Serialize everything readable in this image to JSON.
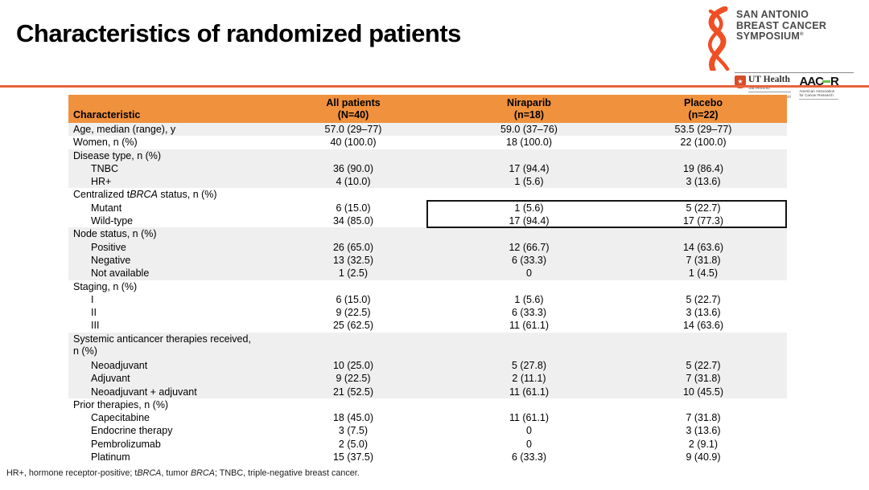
{
  "title": "Characteristics of randomized patients",
  "colors": {
    "header_bg": "#F0913D",
    "row_shade": "#EFEFEF",
    "rule_orange": "#E8643C",
    "ribbon_orange": "#F04E23",
    "aacr_green": "#6CBE4B",
    "ut_shield": "#D64C27"
  },
  "logo": {
    "line1": "SAN ANTONIO",
    "line2": "BREAST CANCER",
    "line3": "SYMPOSIUM",
    "registered": "®",
    "ut_health": {
      "name": "UT Health",
      "sub": "San Antonio",
      "center": "Mays Cancer Center",
      "star": "★"
    },
    "aacr": {
      "left": "AAC",
      "right": "R",
      "sub1": "American Association",
      "sub2": "for Cancer Research"
    }
  },
  "table": {
    "columns": [
      {
        "label": "Characteristic",
        "sub": ""
      },
      {
        "label": "All patients",
        "sub": "(N=40)"
      },
      {
        "label": "Niraparib",
        "sub": "(n=18)"
      },
      {
        "label": "Placebo",
        "sub": "(n=22)"
      }
    ],
    "rows": [
      {
        "label": "Age, median (range), y",
        "indent": false,
        "shade": true,
        "values": [
          "57.0 (29–77)",
          "59.0 (37–76)",
          "53.5 (29–77)"
        ]
      },
      {
        "label": "Women, n (%)",
        "indent": false,
        "shade": false,
        "values": [
          "40 (100.0)",
          "18 (100.0)",
          "22 (100.0)"
        ]
      },
      {
        "label": "Disease type, n (%)",
        "indent": false,
        "shade": true,
        "values": [
          "",
          "",
          ""
        ]
      },
      {
        "label": "TNBC",
        "indent": true,
        "shade": true,
        "values": [
          "36 (90.0)",
          "17 (94.4)",
          "19 (86.4)"
        ]
      },
      {
        "label": "HR+",
        "indent": true,
        "shade": true,
        "values": [
          "4 (10.0)",
          "1 (5.6)",
          "3 (13.6)"
        ]
      },
      {
        "label": "Centralized tBRCA status, n (%)",
        "indent": false,
        "shade": false,
        "values": [
          "",
          "",
          ""
        ]
      },
      {
        "label": "Mutant",
        "indent": true,
        "shade": false,
        "values": [
          "6 (15.0)",
          "1 (5.6)",
          "5 (22.7)"
        ],
        "highlight": true
      },
      {
        "label": "Wild-type",
        "indent": true,
        "shade": false,
        "values": [
          "34 (85.0)",
          "17 (94.4)",
          "17 (77.3)"
        ],
        "highlight": true
      },
      {
        "label": "Node status, n (%)",
        "indent": false,
        "shade": true,
        "values": [
          "",
          "",
          ""
        ]
      },
      {
        "label": "Positive",
        "indent": true,
        "shade": true,
        "values": [
          "26 (65.0)",
          "12 (66.7)",
          "14 (63.6)"
        ]
      },
      {
        "label": "Negative",
        "indent": true,
        "shade": true,
        "values": [
          "13 (32.5)",
          "6 (33.3)",
          "7 (31.8)"
        ]
      },
      {
        "label": "Not available",
        "indent": true,
        "shade": true,
        "values": [
          "1 (2.5)",
          "0",
          "1 (4.5)"
        ]
      },
      {
        "label": "Staging, n (%)",
        "indent": false,
        "shade": false,
        "values": [
          "",
          "",
          ""
        ]
      },
      {
        "label": "I",
        "indent": true,
        "shade": false,
        "values": [
          "6 (15.0)",
          "1 (5.6)",
          "5 (22.7)"
        ]
      },
      {
        "label": "II",
        "indent": true,
        "shade": false,
        "values": [
          "9 (22.5)",
          "6 (33.3)",
          "3 (13.6)"
        ]
      },
      {
        "label": "III",
        "indent": true,
        "shade": false,
        "values": [
          "25 (62.5)",
          "11 (61.1)",
          "14 (63.6)"
        ]
      },
      {
        "label": "Systemic anticancer therapies received,\nn (%)",
        "indent": false,
        "shade": true,
        "twoline": true,
        "values": [
          "",
          "",
          ""
        ]
      },
      {
        "label": "Neoadjuvant",
        "indent": true,
        "shade": true,
        "values": [
          "10 (25.0)",
          "5 (27.8)",
          "5 (22.7)"
        ]
      },
      {
        "label": "Adjuvant",
        "indent": true,
        "shade": true,
        "values": [
          "9 (22.5)",
          "2 (11.1)",
          "7 (31.8)"
        ]
      },
      {
        "label": "Neoadjuvant + adjuvant",
        "indent": true,
        "shade": true,
        "values": [
          "21 (52.5)",
          "11 (61.1)",
          "10 (45.5)"
        ]
      },
      {
        "label": "Prior therapies, n (%)",
        "indent": false,
        "shade": false,
        "values": [
          "",
          "",
          ""
        ]
      },
      {
        "label": "Capecitabine",
        "indent": true,
        "shade": false,
        "values": [
          "18 (45.0)",
          "11 (61.1)",
          "7 (31.8)"
        ]
      },
      {
        "label": "Endocrine therapy",
        "indent": true,
        "shade": false,
        "values": [
          "3 (7.5)",
          "0",
          "3 (13.6)"
        ]
      },
      {
        "label": "Pembrolizumab",
        "indent": true,
        "shade": false,
        "values": [
          "2 (5.0)",
          "0",
          "2 (9.1)"
        ]
      },
      {
        "label": "Platinum",
        "indent": true,
        "shade": false,
        "values": [
          "15 (37.5)",
          "6 (33.3)",
          "9 (40.9)"
        ]
      }
    ]
  },
  "footnote": "HR+, hormone receptor-positive; tBRCA, tumor BRCA; TNBC, triple-negative breast cancer."
}
